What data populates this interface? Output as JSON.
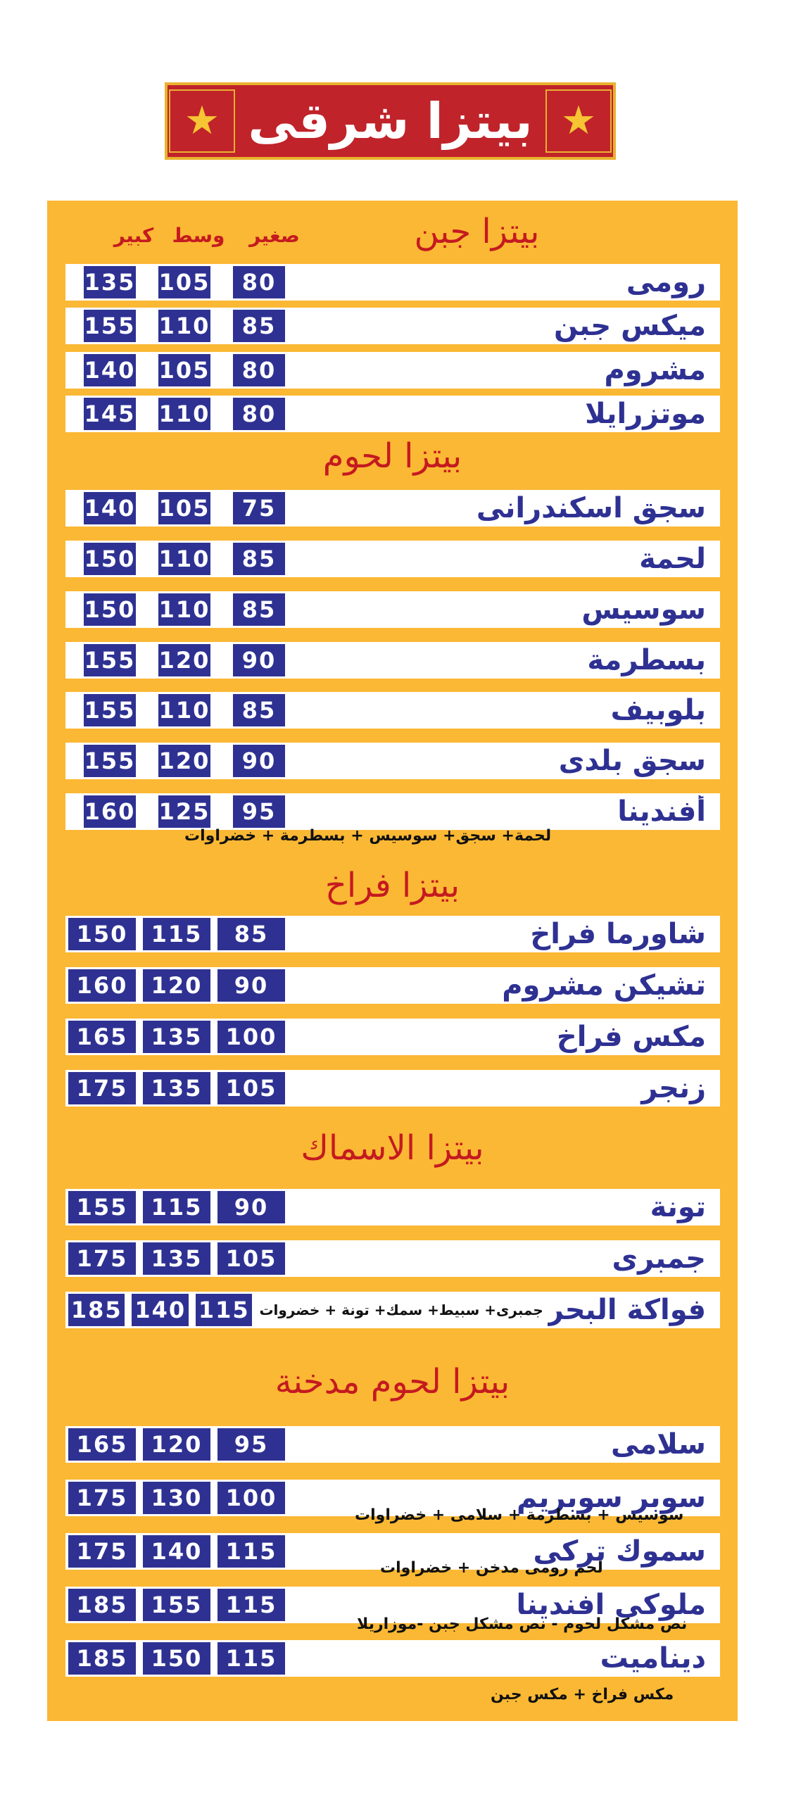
{
  "banner": {
    "title": "بيتزا شرقى",
    "star": "★"
  },
  "size_labels": {
    "small": "صغير",
    "medium": "وسط",
    "large": "كبير"
  },
  "sections": {
    "cheese": {
      "title": "بيتزا جبن",
      "items": [
        {
          "name": "رومى",
          "small": "80",
          "medium": "105",
          "large": "135"
        },
        {
          "name": "ميكس جبن",
          "small": "85",
          "medium": "110",
          "large": "155"
        },
        {
          "name": "مشروم",
          "small": "80",
          "medium": "105",
          "large": "140"
        },
        {
          "name": "موتزرايلا",
          "small": "80",
          "medium": "110",
          "large": "145"
        }
      ]
    },
    "meat": {
      "title": "بيتزا لحوم",
      "items": [
        {
          "name": "سجق اسكندرانى",
          "small": "75",
          "medium": "105",
          "large": "140"
        },
        {
          "name": "لحمة",
          "small": "85",
          "medium": "110",
          "large": "150"
        },
        {
          "name": "سوسيس",
          "small": "85",
          "medium": "110",
          "large": "150"
        },
        {
          "name": "بسطرمة",
          "small": "90",
          "medium": "120",
          "large": "155"
        },
        {
          "name": "بلوبيف",
          "small": "85",
          "medium": "110",
          "large": "155"
        },
        {
          "name": "سجق بلدى",
          "small": "90",
          "medium": "120",
          "large": "155"
        },
        {
          "name": "أفندينا",
          "small": "95",
          "medium": "125",
          "large": "160"
        }
      ],
      "note": "لحمة+ سجق+ سوسيس + بسطرمة + خضراوات"
    },
    "chicken": {
      "title": "بيتزا فراخ",
      "items": [
        {
          "name": "شاورما فراخ",
          "small": "85",
          "medium": "115",
          "large": "150"
        },
        {
          "name": "تشيكن مشروم",
          "small": "90",
          "medium": "120",
          "large": "160"
        },
        {
          "name": "مكس فراخ",
          "small": "100",
          "medium": "135",
          "large": "165"
        },
        {
          "name": "زنجر",
          "small": "105",
          "medium": "135",
          "large": "175"
        }
      ]
    },
    "fish": {
      "title": "بيتزا الاسماك",
      "items": [
        {
          "name": "تونة",
          "small": "90",
          "medium": "115",
          "large": "155"
        },
        {
          "name": "جمبرى",
          "small": "105",
          "medium": "135",
          "large": "175"
        },
        {
          "name": "فواكة البحر",
          "small": "115",
          "medium": "140",
          "large": "185",
          "inline_note": "جمبرى+ سبيط+ سمك+ تونة + خضروات"
        }
      ]
    },
    "smoked": {
      "title": "بيتزا لحوم مدخنة",
      "items": [
        {
          "name": "سلامى",
          "small": "95",
          "medium": "120",
          "large": "165"
        },
        {
          "name": "سوبر سوبريم",
          "small": "100",
          "medium": "130",
          "large": "175",
          "note": "سوسيس + بسطرمة + سلامى + خضراوات"
        },
        {
          "name": "سموك تركى",
          "small": "115",
          "medium": "140",
          "large": "175",
          "note": "لحم رومى مدخن + خضراوات"
        },
        {
          "name": "ملوكى افندينا",
          "small": "115",
          "medium": "155",
          "large": "185",
          "note": "نص مشكل لحوم - نص مشكل جبن -موزاريلا"
        },
        {
          "name": "ديناميت",
          "small": "115",
          "medium": "150",
          "large": "185",
          "note": "مكس فراخ + مكس جبن"
        }
      ]
    }
  },
  "colors": {
    "panel": "#fbb834",
    "price_box": "#2e3192",
    "title_red": "#c41a20",
    "banner_red": "#c0232a",
    "banner_gold": "#e9b230"
  }
}
